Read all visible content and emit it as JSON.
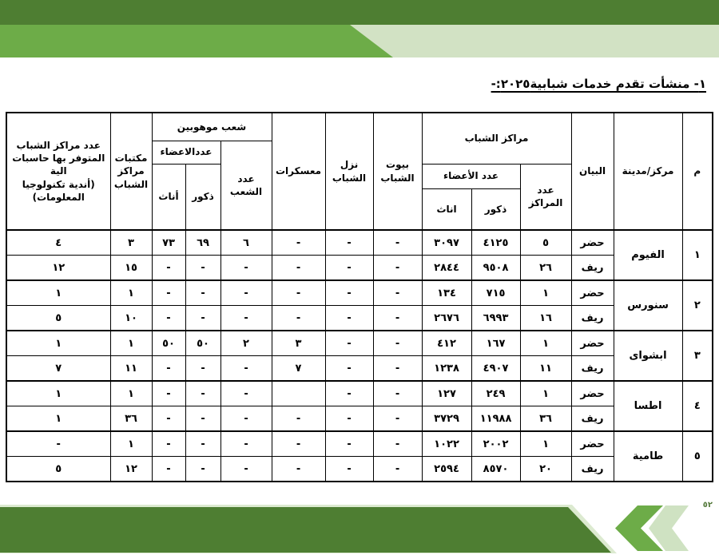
{
  "title": "١- منشأت تقدم خدمات شبابية٢٠٢٥:-",
  "colors": {
    "dark_green": "#4e7e32",
    "mid_green": "#6dac48",
    "pale_green": "#d2e2c4"
  },
  "footer": {
    "page_number": "٥٢"
  },
  "table": {
    "headers": {
      "serial": "م",
      "center_city": "مركز/مدينة",
      "statement": "البيان",
      "youth_centers_group": "مراكز الشباب",
      "centers_count": "عدد المراكز",
      "members_count": "عدد الأعضاء",
      "males": "ذكور",
      "females": "اناث",
      "youth_houses": "بيوت الشباب",
      "youth_hostels": "نزل الشباب",
      "camps": "معسكرات",
      "talented_group": "شعب موهوبين",
      "divisions_count": "عدد الشعب",
      "talented_members_count": "عددالاعضاء",
      "talented_males": "ذكور",
      "talented_females": "أناث",
      "libraries": "مكتبات مراكز الشباب",
      "computers": "عدد مراكز الشباب المتوفر بها حاسبات الية\n(أندية تكنولوجيا المعلومات)"
    },
    "groups": [
      {
        "serial": "١",
        "city": "الفيوم",
        "rows": [
          {
            "statement": "حضر",
            "centers": "٥",
            "males": "٤١٢٥",
            "females": "٣٠٩٧",
            "houses": "-",
            "hostels": "-",
            "camps": "-",
            "divisions": "٦",
            "t_males": "٦٩",
            "t_females": "٧٣",
            "libraries": "٣",
            "computers": "٤"
          },
          {
            "statement": "ريف",
            "centers": "٢٦",
            "males": "٩٥٠٨",
            "females": "٢٨٤٤",
            "houses": "-",
            "hostels": "-",
            "camps": "-",
            "divisions": "-",
            "t_males": "-",
            "t_females": "-",
            "libraries": "١٥",
            "computers": "١٢"
          }
        ]
      },
      {
        "serial": "٢",
        "city": "سنورس",
        "rows": [
          {
            "statement": "حضر",
            "centers": "١",
            "males": "٧١٥",
            "females": "١٣٤",
            "houses": "-",
            "hostels": "-",
            "camps": "-",
            "divisions": "-",
            "t_males": "-",
            "t_females": "-",
            "libraries": "١",
            "computers": "١"
          },
          {
            "statement": "ريف",
            "centers": "١٦",
            "males": "٦٩٩٣",
            "females": "٢٦٧٦",
            "houses": "-",
            "hostels": "-",
            "camps": "-",
            "divisions": "-",
            "t_males": "-",
            "t_females": "-",
            "libraries": "١٠",
            "computers": "٥"
          }
        ]
      },
      {
        "serial": "٣",
        "city": "ابشواى",
        "rows": [
          {
            "statement": "حضر",
            "centers": "١",
            "males": "١٦٧",
            "females": "٤١٢",
            "houses": "-",
            "hostels": "-",
            "camps": "٣",
            "divisions": "٢",
            "t_males": "٥٠",
            "t_females": "٥٠",
            "libraries": "١",
            "computers": "١"
          },
          {
            "statement": "ريف",
            "centers": "١١",
            "males": "٤٩٠٧",
            "females": "١٢٣٨",
            "houses": "-",
            "hostels": "-",
            "camps": "٧",
            "divisions": "-",
            "t_males": "-",
            "t_females": "-",
            "libraries": "١١",
            "computers": "٧"
          }
        ]
      },
      {
        "serial": "٤",
        "city": "اطسا",
        "rows": [
          {
            "statement": "حضر",
            "centers": "١",
            "males": "٢٤٩",
            "females": "١٢٧",
            "houses": "-",
            "hostels": "-",
            "camps": "",
            "divisions": "-",
            "t_males": "-",
            "t_females": "-",
            "libraries": "١",
            "computers": "١"
          },
          {
            "statement": "ريف",
            "centers": "٣٦",
            "males": "١١٩٨٨",
            "females": "٣٧٢٩",
            "houses": "-",
            "hostels": "-",
            "camps": "-",
            "divisions": "-",
            "t_males": "-",
            "t_females": "-",
            "libraries": "٣٦",
            "computers": "١"
          }
        ]
      },
      {
        "serial": "٥",
        "city": "طامية",
        "rows": [
          {
            "statement": "حضر",
            "centers": "١",
            "males": "٢٠٠٢",
            "females": "١٠٢٢",
            "houses": "-",
            "hostels": "-",
            "camps": "-",
            "divisions": "-",
            "t_males": "-",
            "t_females": "-",
            "libraries": "١",
            "computers": "-"
          },
          {
            "statement": "ريف",
            "centers": "٢٠",
            "males": "٨٥٧٠",
            "females": "٢٥٩٤",
            "houses": "-",
            "hostels": "-",
            "camps": "-",
            "divisions": "-",
            "t_males": "-",
            "t_females": "-",
            "libraries": "١٢",
            "computers": "٥"
          }
        ]
      }
    ]
  }
}
